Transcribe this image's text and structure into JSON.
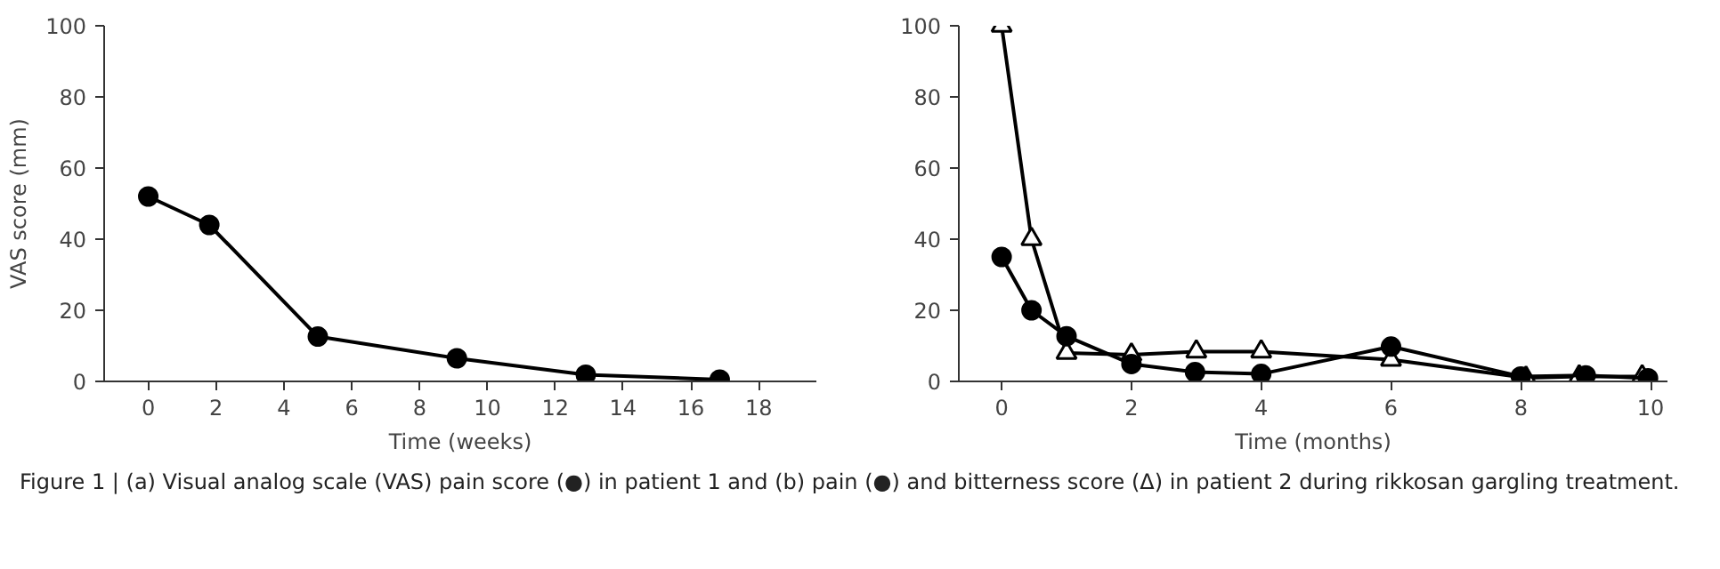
{
  "chart_data": [
    {
      "type": "line",
      "xlabel": "Time (weeks)",
      "ylabel": "VAS score (mm)",
      "xlim": [
        -1.3,
        19.7
      ],
      "ylim": [
        0,
        100
      ],
      "xticks": [
        0,
        2,
        4,
        6,
        8,
        10,
        12,
        14,
        16,
        18
      ],
      "yticks": [
        0,
        20,
        40,
        60,
        80,
        100
      ],
      "grid": false,
      "line_style": "solid",
      "series": [
        {
          "color": "#000000",
          "marker": "circle",
          "x": [
            0,
            1.8,
            5.0,
            9.1,
            12.9,
            16.85
          ],
          "values": [
            52,
            44,
            12.6,
            6.5,
            1.9,
            0.5
          ]
        }
      ],
      "annotations": [
        "Figure 1 | (a) Visual analog scale (VAS) pain score (●) in patient 1 and (b) pain (●) and bitterness score (Δ) in patient 2 during rikkosan gargling treatment."
      ]
    },
    {
      "type": "line",
      "xlabel": "Time (months)",
      "xlim": [
        -0.66,
        10.26
      ],
      "ylim": [
        0,
        100
      ],
      "xticks": [
        0,
        2,
        4,
        6,
        8,
        10
      ],
      "yticks": [
        0,
        20,
        40,
        60,
        80,
        100
      ],
      "grid": false,
      "line_style": "solid",
      "series": [
        {
          "color": "#000000",
          "marker": "triangle",
          "x": [
            0,
            0.46,
            1.0,
            2.0,
            3.0,
            4.0,
            6.0,
            8.08,
            8.9,
            9.87
          ],
          "values": [
            100,
            40,
            8,
            7.5,
            8.4,
            8.4,
            6.1,
            1.0,
            1.4,
            1.4
          ]
        },
        {
          "color": "#000000",
          "marker": "circle",
          "x": [
            0,
            0.46,
            1.0,
            2.0,
            2.98,
            4.0,
            6.0,
            8.0,
            9.0,
            9.96
          ],
          "values": [
            35,
            20,
            12.7,
            4.9,
            2.6,
            2.1,
            9.8,
            1.4,
            1.7,
            0.9
          ]
        }
      ]
    }
  ]
}
